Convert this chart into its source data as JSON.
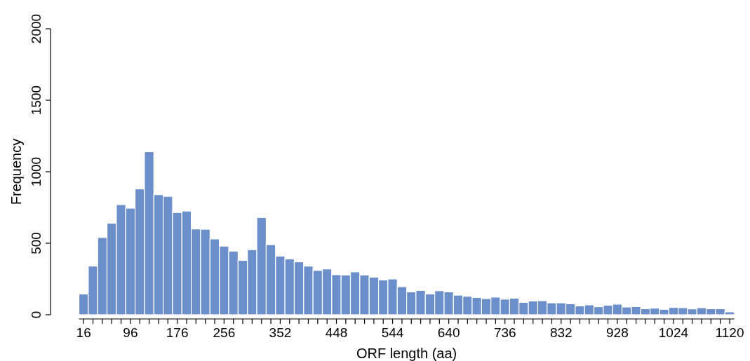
{
  "chart_data": {
    "type": "histogram",
    "xlabel": "ORF length (aa)",
    "ylabel": "Frequency",
    "color": "#6b8fcb",
    "bins": [
      8,
      24,
      40,
      56,
      72,
      88,
      104,
      120,
      136,
      152,
      168,
      184,
      200,
      216,
      232,
      248,
      264,
      280,
      296,
      312,
      328,
      344,
      360,
      376,
      392,
      408,
      424,
      440,
      456,
      472,
      488,
      504,
      520,
      536,
      552,
      568,
      584,
      600,
      616,
      632,
      648,
      664,
      680,
      696,
      712,
      728,
      744,
      760,
      776,
      792,
      808,
      824,
      840,
      856,
      872,
      888,
      904,
      920,
      936,
      952,
      968,
      984,
      1000,
      1016,
      1032,
      1048,
      1064,
      1080,
      1096,
      1112,
      1128
    ],
    "values": [
      145,
      340,
      540,
      640,
      770,
      745,
      880,
      1140,
      840,
      828,
      715,
      725,
      600,
      598,
      530,
      480,
      445,
      380,
      455,
      680,
      490,
      410,
      390,
      370,
      340,
      310,
      320,
      280,
      278,
      300,
      278,
      263,
      243,
      250,
      196,
      160,
      170,
      145,
      168,
      160,
      137,
      129,
      121,
      113,
      123,
      109,
      116,
      87,
      96,
      98,
      83,
      83,
      77,
      62,
      69,
      56,
      67,
      74,
      54,
      57,
      42,
      46,
      38,
      51,
      49,
      41,
      49,
      42,
      42,
      20
    ],
    "xlim": [
      8,
      1128
    ],
    "xticks": [
      16,
      {
        "value": 32,
        "label": null
      },
      {
        "value": 48,
        "label": null
      },
      {
        "value": 64,
        "label": null
      },
      {
        "value": 80,
        "label": null
      },
      96,
      {
        "value": 112,
        "label": null
      },
      {
        "value": 128,
        "label": null
      },
      {
        "value": 144,
        "label": null
      },
      {
        "value": 160,
        "label": null
      },
      176,
      {
        "value": 192,
        "label": null
      },
      {
        "value": 208,
        "label": null
      },
      {
        "value": 224,
        "label": null
      },
      {
        "value": 240,
        "label": null
      },
      256,
      {
        "value": 272,
        "label": null
      },
      {
        "value": 288,
        "label": null
      },
      {
        "value": 304,
        "label": null
      },
      {
        "value": 320,
        "label": null
      },
      {
        "value": 336,
        "label": null
      },
      352,
      {
        "value": 368,
        "label": null
      },
      {
        "value": 384,
        "label": null
      },
      {
        "value": 400,
        "label": null
      },
      {
        "value": 416,
        "label": null
      },
      {
        "value": 432,
        "label": null
      },
      448,
      {
        "value": 464,
        "label": null
      },
      {
        "value": 480,
        "label": null
      },
      {
        "value": 496,
        "label": null
      },
      {
        "value": 512,
        "label": null
      },
      {
        "value": 528,
        "label": null
      },
      544,
      {
        "value": 560,
        "label": null
      },
      {
        "value": 576,
        "label": null
      },
      {
        "value": 592,
        "label": null
      },
      {
        "value": 608,
        "label": null
      },
      {
        "value": 624,
        "label": null
      },
      640,
      {
        "value": 656,
        "label": null
      },
      {
        "value": 672,
        "label": null
      },
      {
        "value": 688,
        "label": null
      },
      {
        "value": 704,
        "label": null
      },
      {
        "value": 720,
        "label": null
      },
      736,
      {
        "value": 752,
        "label": null
      },
      {
        "value": 768,
        "label": null
      },
      {
        "value": 784,
        "label": null
      },
      {
        "value": 800,
        "label": null
      },
      {
        "value": 816,
        "label": null
      },
      832,
      {
        "value": 848,
        "label": null
      },
      {
        "value": 864,
        "label": null
      },
      {
        "value": 880,
        "label": null
      },
      {
        "value": 896,
        "label": null
      },
      {
        "value": 912,
        "label": null
      },
      928,
      {
        "value": 944,
        "label": null
      },
      {
        "value": 960,
        "label": null
      },
      {
        "value": 976,
        "label": null
      },
      {
        "value": 992,
        "label": null
      },
      {
        "value": 1008,
        "label": null
      },
      1024,
      {
        "value": 1040,
        "label": null
      },
      {
        "value": 1056,
        "label": null
      },
      {
        "value": 1072,
        "label": null
      },
      {
        "value": 1088,
        "label": null
      },
      {
        "value": 1104,
        "label": null
      },
      1120
    ],
    "ylim": [
      0,
      2000
    ],
    "yticks": [
      0,
      500,
      1000,
      1500,
      2000
    ]
  }
}
